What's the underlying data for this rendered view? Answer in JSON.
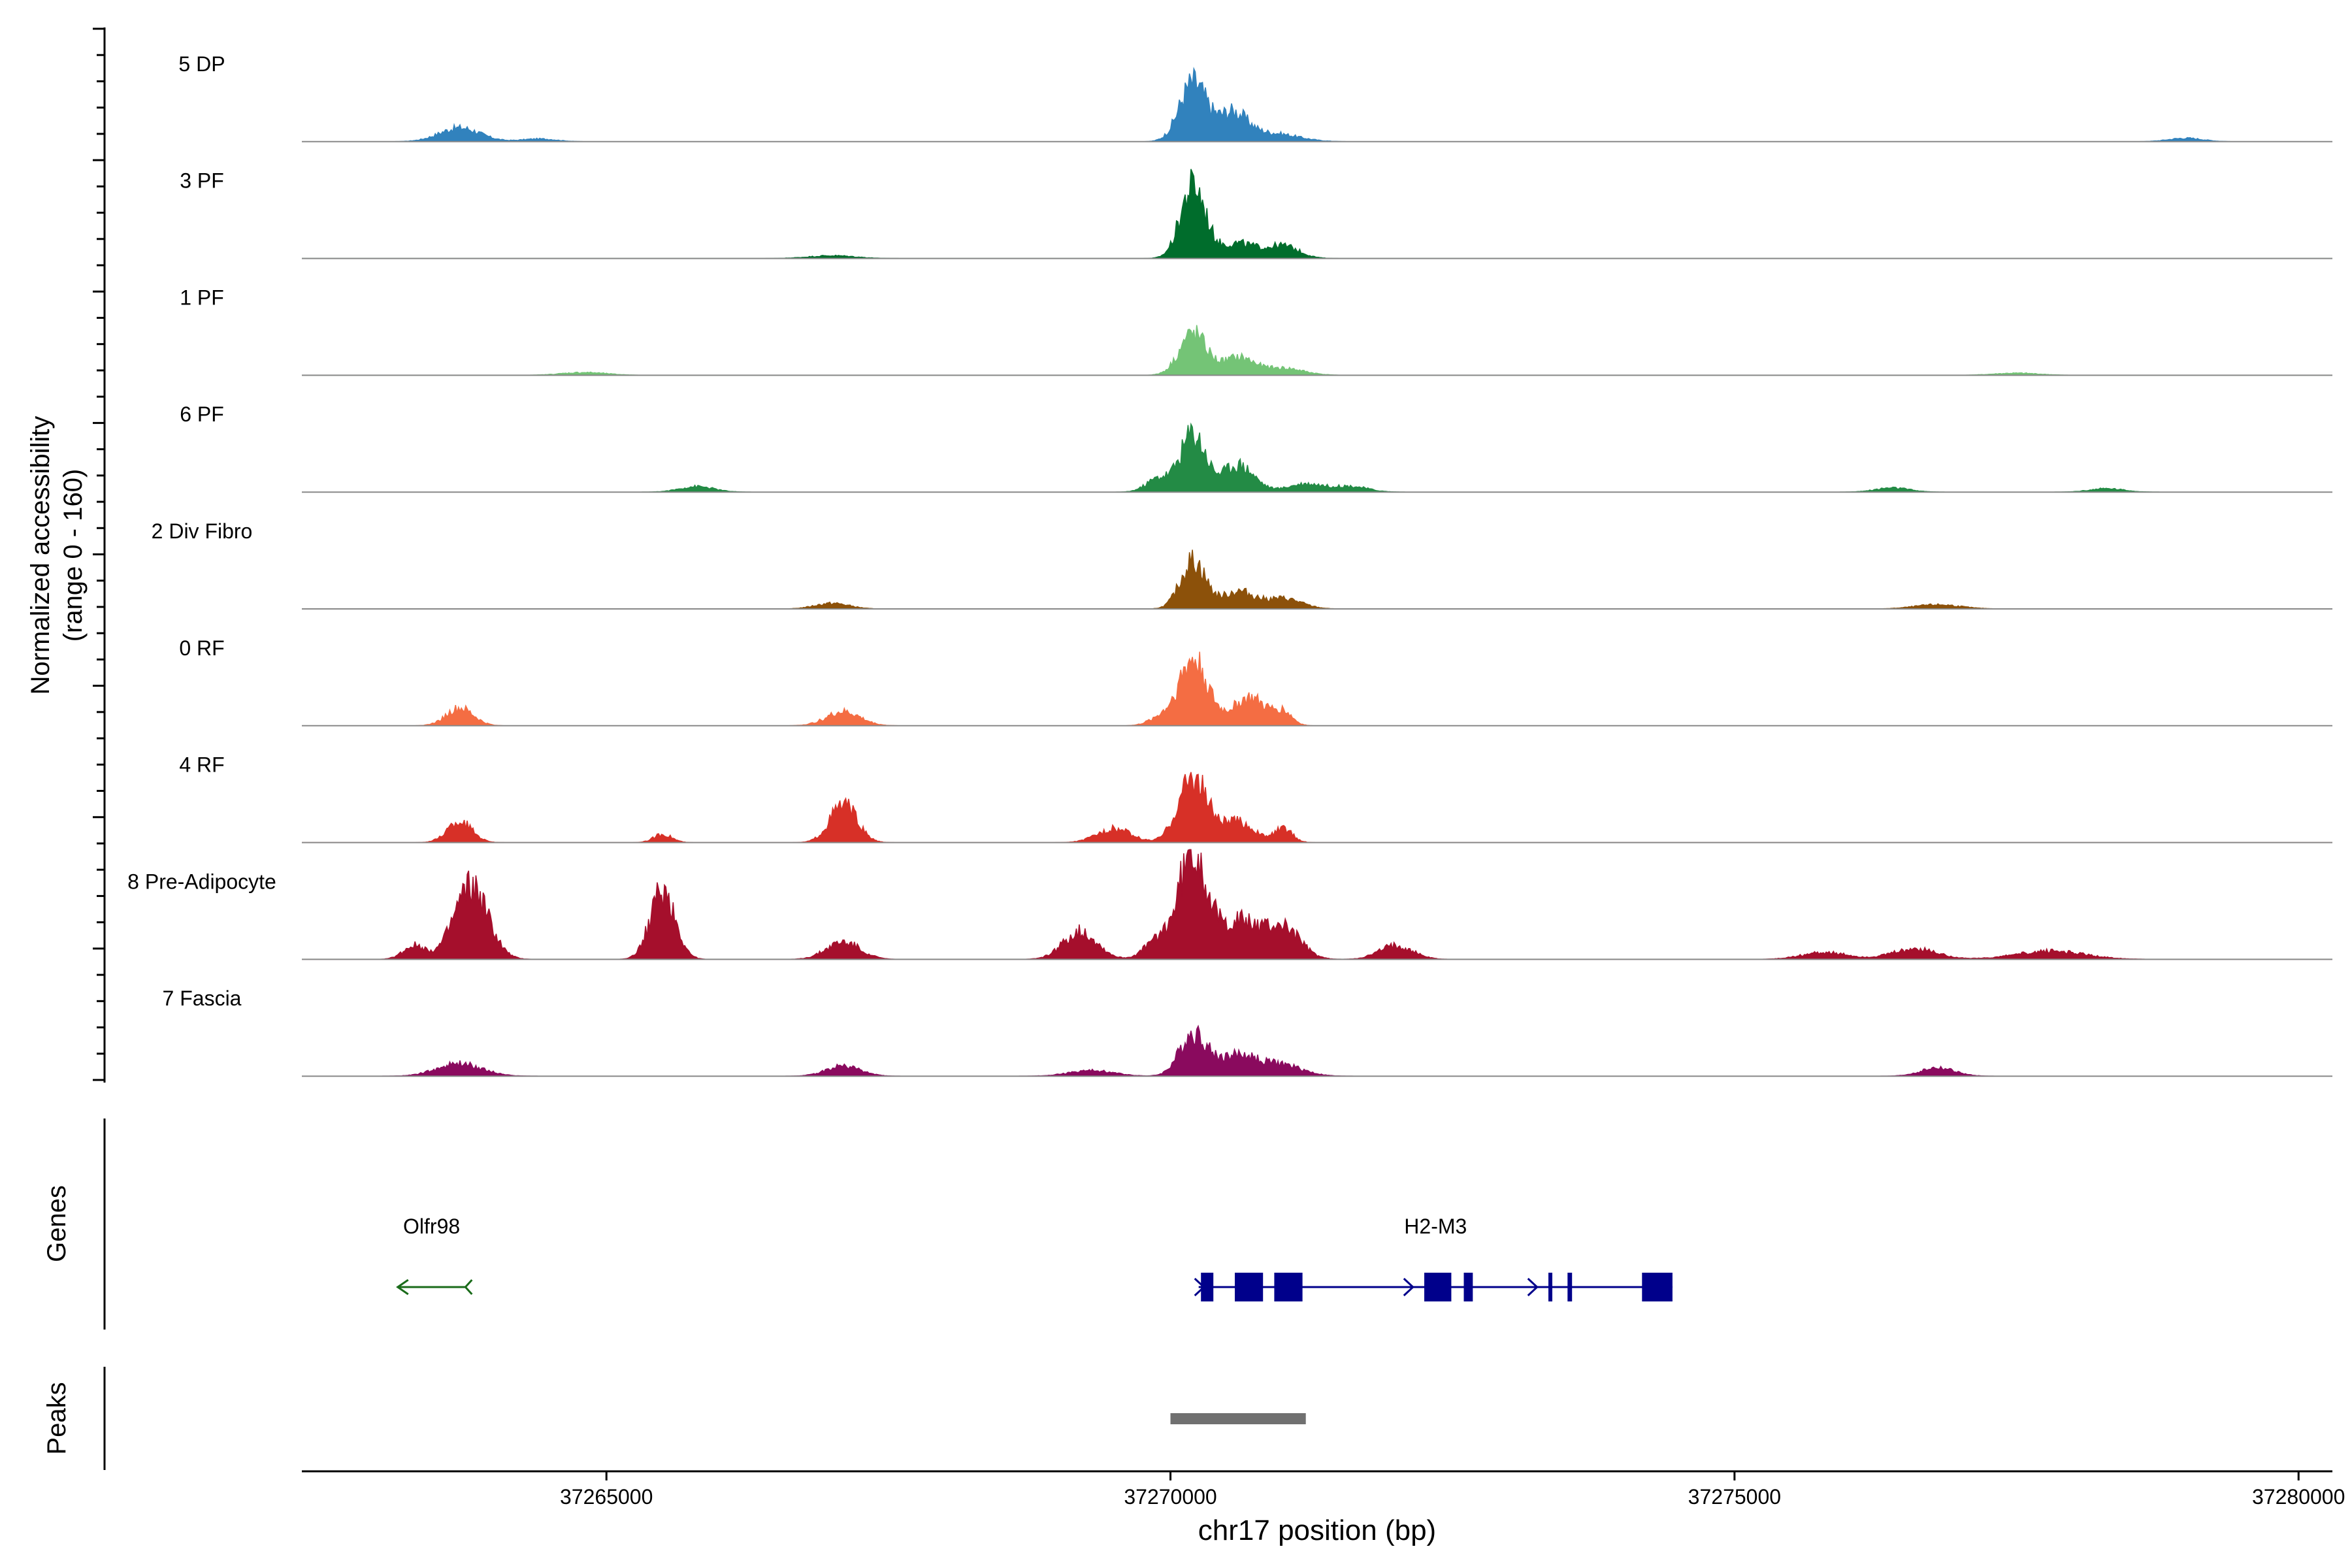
{
  "chart_data": {
    "type": "area",
    "title": "",
    "ylabel_line1": "Normalized accessibility",
    "ylabel_line2": "(range 0 - 160)",
    "ylim": [
      0,
      160
    ],
    "xlabel": "chr17 position (bp)",
    "xlim": [
      37262300,
      37280300
    ],
    "x_ticks": [
      37265000,
      37270000,
      37275000,
      37280000
    ],
    "x_tick_labels": [
      "37265000",
      "37270000",
      "37275000",
      "37280000"
    ],
    "series": [
      {
        "name": "5 DP",
        "color": "#3182bd",
        "peaks": [
          [
            37263700,
            20,
            180
          ],
          [
            37264400,
            4,
            150
          ],
          [
            37270200,
            85,
            120
          ],
          [
            37270550,
            40,
            130
          ],
          [
            37270900,
            12,
            220
          ],
          [
            37279000,
            5,
            150
          ]
        ]
      },
      {
        "name": "3 PF",
        "color": "#006d2c",
        "peaks": [
          [
            37270200,
            105,
            110
          ],
          [
            37270600,
            22,
            160
          ],
          [
            37271000,
            18,
            140
          ],
          [
            37267000,
            4,
            200
          ]
        ]
      },
      {
        "name": "1 PF",
        "color": "#74c476",
        "peaks": [
          [
            37270200,
            60,
            120
          ],
          [
            37270600,
            25,
            140
          ],
          [
            37271000,
            10,
            180
          ],
          [
            37264800,
            4,
            200
          ],
          [
            37277500,
            3,
            200
          ]
        ]
      },
      {
        "name": "6 PF",
        "color": "#238b45",
        "peaks": [
          [
            37270200,
            85,
            110
          ],
          [
            37270600,
            40,
            140
          ],
          [
            37269900,
            20,
            110
          ],
          [
            37271200,
            12,
            160
          ],
          [
            37271600,
            8,
            150
          ],
          [
            37265800,
            8,
            150
          ],
          [
            37276400,
            6,
            150
          ],
          [
            37278300,
            5,
            150
          ]
        ]
      },
      {
        "name": "2 Div Fibro",
        "color": "#8c510a",
        "peaks": [
          [
            37270200,
            70,
            110
          ],
          [
            37270600,
            25,
            140
          ],
          [
            37271000,
            15,
            160
          ],
          [
            37267000,
            8,
            150
          ],
          [
            37276800,
            6,
            200
          ]
        ]
      },
      {
        "name": "0 RF",
        "color": "#f46d43",
        "peaks": [
          [
            37270200,
            95,
            130
          ],
          [
            37270700,
            40,
            150
          ],
          [
            37263700,
            25,
            120
          ],
          [
            37267100,
            20,
            150
          ],
          [
            37271000,
            18,
            80
          ],
          [
            37269900,
            10,
            100
          ]
        ]
      },
      {
        "name": "4 RF",
        "color": "#d73027",
        "peaks": [
          [
            37270200,
            95,
            130
          ],
          [
            37267100,
            55,
            120
          ],
          [
            37263700,
            30,
            110
          ],
          [
            37270600,
            30,
            140
          ],
          [
            37271000,
            20,
            80
          ],
          [
            37265500,
            12,
            80
          ],
          [
            37269500,
            20,
            150
          ]
        ]
      },
      {
        "name": "8 Pre-Adipocyte",
        "color": "#a50f2c",
        "peaks": [
          [
            37270200,
            155,
            120
          ],
          [
            37263800,
            105,
            150
          ],
          [
            37265500,
            100,
            110
          ],
          [
            37270600,
            55,
            180
          ],
          [
            37271000,
            45,
            150
          ],
          [
            37269200,
            40,
            150
          ],
          [
            37267100,
            25,
            150
          ],
          [
            37269900,
            30,
            120
          ],
          [
            37263300,
            20,
            100
          ],
          [
            37272000,
            20,
            150
          ],
          [
            37276600,
            15,
            200
          ],
          [
            37277800,
            12,
            300
          ],
          [
            37275800,
            10,
            200
          ]
        ]
      },
      {
        "name": "7 Fascia",
        "color": "#8a0a5e",
        "peaks": [
          [
            37270200,
            60,
            120
          ],
          [
            37270600,
            30,
            180
          ],
          [
            37271000,
            15,
            180
          ],
          [
            37263700,
            18,
            200
          ],
          [
            37267100,
            15,
            150
          ],
          [
            37276800,
            12,
            150
          ],
          [
            37269300,
            8,
            200
          ]
        ]
      }
    ],
    "genes_label": "Genes",
    "genes": [
      {
        "name": "Olfr98",
        "strand": "-",
        "color": "#1a6b1a",
        "start": 37263150,
        "end": 37263750,
        "exons": []
      },
      {
        "name": "H2-M3",
        "strand": "+",
        "color": "#00008b",
        "start": 37270250,
        "end": 37274450,
        "exons": [
          [
            37270270,
            37270380
          ],
          [
            37270570,
            37270820
          ],
          [
            37270920,
            37271170
          ],
          [
            37272250,
            37272490
          ],
          [
            37272600,
            37272680
          ],
          [
            37273350,
            37273380
          ],
          [
            37273520,
            37273560
          ],
          [
            37274180,
            37274450
          ]
        ]
      }
    ],
    "peaks_label": "Peaks",
    "peak_regions": [
      {
        "start": 37270000,
        "end": 37271200,
        "color": "#707070"
      }
    ]
  }
}
